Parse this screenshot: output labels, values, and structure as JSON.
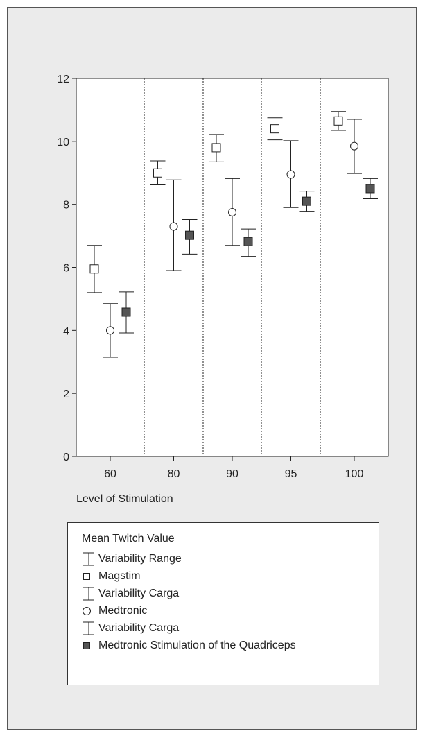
{
  "chart_data": {
    "type": "scatter",
    "xlabel": "Level of Stimulation",
    "ylabel": "",
    "categories": [
      "60",
      "80",
      "90",
      "95",
      "100"
    ],
    "ylim": [
      0,
      12
    ],
    "yticks": [
      0,
      2,
      4,
      6,
      8,
      10,
      12
    ],
    "grid": "dotted vertical separators between categories",
    "series": [
      {
        "name": "Magstim",
        "marker": "open-square",
        "values": [
          5.95,
          9.0,
          9.8,
          10.4,
          10.65
        ],
        "err_low": [
          5.2,
          8.62,
          9.35,
          10.05,
          10.35
        ],
        "err_high": [
          6.7,
          9.38,
          10.22,
          10.75,
          10.95
        ]
      },
      {
        "name": "Medtronic",
        "marker": "open-circle",
        "values": [
          4.0,
          7.3,
          7.75,
          8.95,
          9.85
        ],
        "err_low": [
          3.15,
          5.9,
          6.7,
          7.9,
          8.98
        ],
        "err_high": [
          4.85,
          8.78,
          8.82,
          10.02,
          10.7
        ]
      },
      {
        "name": "Medtronic Stimulation of the Quadriceps",
        "marker": "filled-square",
        "values": [
          4.58,
          7.02,
          6.82,
          8.1,
          8.5
        ],
        "err_low": [
          3.92,
          6.42,
          6.35,
          7.78,
          8.18
        ],
        "err_high": [
          5.22,
          7.52,
          7.22,
          8.42,
          8.82
        ]
      }
    ],
    "legend": {
      "placement": "bottom",
      "title": "Mean Twitch Value",
      "items": [
        {
          "symbol": "error-bar",
          "label": "Variability Range"
        },
        {
          "symbol": "open-square",
          "label": "Magstim"
        },
        {
          "symbol": "error-bar",
          "label": "Variability Carga"
        },
        {
          "symbol": "open-circle",
          "label": "Medtronic"
        },
        {
          "symbol": "error-bar",
          "label": "Variability Carga"
        },
        {
          "symbol": "filled-square",
          "label": "Medtronic Stimulation of the Quadriceps"
        }
      ]
    }
  },
  "colors": {
    "panel_background": "#ebebeb",
    "plot_background": "#ffffff",
    "ink": "#222222",
    "filled_marker": "#555555",
    "open_marker_fill": "#ffffff"
  }
}
